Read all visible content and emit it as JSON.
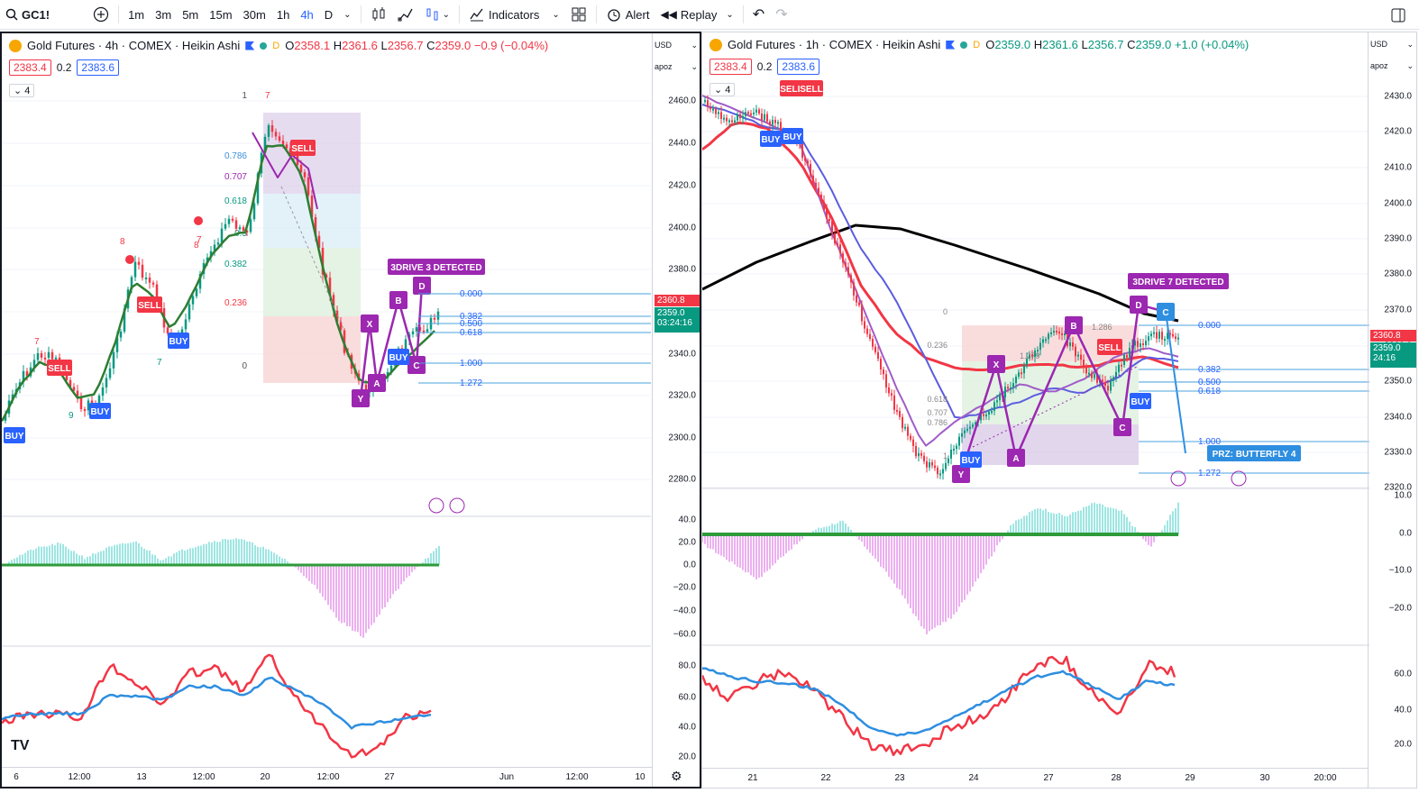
{
  "toolbar": {
    "symbol": "GC1!",
    "intervals": [
      "1m",
      "3m",
      "5m",
      "15m",
      "30m",
      "1h",
      "4h",
      "D"
    ],
    "active_interval": "4h",
    "indicators_label": "Indicators",
    "alert_label": "Alert",
    "replay_label": "Replay"
  },
  "left": {
    "title": "Gold Futures · 4h · COMEX · Heikin Ashi",
    "d_badge": "D",
    "ohlc": {
      "o": "2358.1",
      "h": "2361.6",
      "l": "2356.7",
      "c": "2359.0",
      "chg": "−0.9 (−0.04%)"
    },
    "sell_price": "2383.4",
    "spread": "0.2",
    "buy_price": "2383.6",
    "collapse_count": "4",
    "currency": "USD",
    "scale_label": "apoz",
    "price_ticks": [
      "2460.0",
      "2440.0",
      "2420.0",
      "2400.0",
      "2380.0",
      "2360.0",
      "2340.0",
      "2320.0",
      "2300.0",
      "2280.0"
    ],
    "osc_ticks": [
      "40.0",
      "20.0",
      "0.0",
      "−20.0",
      "−40.0",
      "−60.0"
    ],
    "rsi_ticks": [
      "80.0",
      "60.0",
      "40.0",
      "20.0"
    ],
    "time_ticks": [
      "6",
      "12:00",
      "13",
      "12:00",
      "20",
      "12:00",
      "27",
      "Jun",
      "12:00",
      "10"
    ],
    "last_price_red": "2360.8",
    "last_price_green": "2359.0",
    "countdown": "03:24:16",
    "pattern_label": "3DRIVE 3 DETECTED",
    "fib_levels": [
      "0.000",
      "0.382",
      "0.500",
      "0.618",
      "1.000",
      "1.272"
    ],
    "fib_box_levels": [
      "0.786",
      "0.707",
      "0.618",
      "0.5",
      "0.382",
      "0.236",
      "0",
      "1"
    ],
    "signals": {
      "sell": "SELL",
      "buy": "BUY"
    },
    "points": [
      "X",
      "A",
      "B",
      "C",
      "D",
      "Y"
    ],
    "td_counts": [
      "7",
      "8",
      "7",
      "7",
      "8",
      "7",
      "9"
    ]
  },
  "right": {
    "title": "Gold Futures · 1h · COMEX · Heikin Ashi",
    "ohlc": {
      "o": "2359.0",
      "h": "2361.6",
      "l": "2356.7",
      "c": "2359.0",
      "chg": "+1.0 (+0.04%)"
    },
    "sell_price": "2383.4",
    "spread": "0.2",
    "buy_price": "2383.6",
    "collapse_count": "4",
    "currency": "USD",
    "scale_label": "apoz",
    "price_ticks": [
      "2430.0",
      "2420.0",
      "2410.0",
      "2400.0",
      "2390.0",
      "2380.0",
      "2370.0",
      "2360.0",
      "2350.0",
      "2340.0",
      "2330.0",
      "2320.0"
    ],
    "osc_ticks": [
      "10.0",
      "0.0",
      "−10.0",
      "−20.0"
    ],
    "rsi_ticks": [
      "60.0",
      "40.0",
      "20.0"
    ],
    "time_ticks": [
      "21",
      "22",
      "23",
      "24",
      "27",
      "28",
      "29",
      "30",
      "20:00"
    ],
    "last_price_red": "2360.8",
    "last_price_green": "2359.0",
    "countdown": "24:16",
    "pattern_label": "3DRIVE 7 DETECTED",
    "prz_label": "PRZ: BUTTERFLY 4",
    "fib_levels": [
      "0.000",
      "0.382",
      "0.500",
      "0.618",
      "1.000",
      "1.272"
    ],
    "fib_small": [
      "1.286",
      "1.279",
      "0",
      "0.236",
      "0.618",
      "0.707",
      "0.786",
      "1"
    ]
  },
  "colors": {
    "up": "#089981",
    "down": "#f23645",
    "accent": "#2962ff",
    "pattern": "#9c27b0"
  }
}
